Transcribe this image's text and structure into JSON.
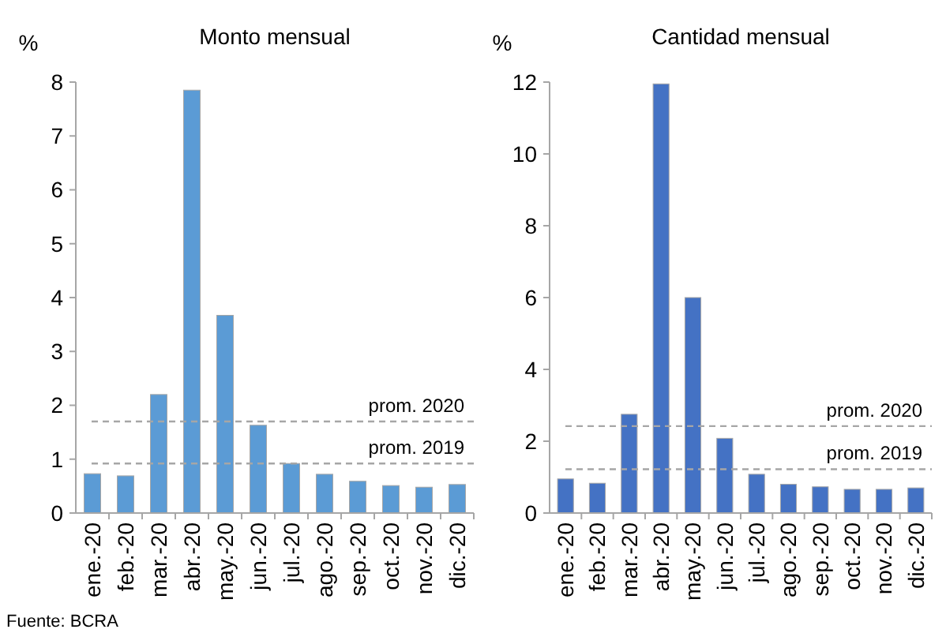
{
  "chart_data": [
    {
      "type": "bar",
      "title": "Monto mensual",
      "ylabel": "%",
      "categories": [
        "ene.-20",
        "feb.-20",
        "mar.-20",
        "abr.-20",
        "may.-20",
        "jun.-20",
        "jul.-20",
        "ago.-20",
        "sep.-20",
        "oct.-20",
        "nov.-20",
        "dic.-20"
      ],
      "series": [
        {
          "color": "#5b9bd5",
          "values": [
            0.73,
            0.69,
            2.2,
            7.85,
            3.67,
            1.63,
            0.92,
            0.72,
            0.59,
            0.51,
            0.48,
            0.53
          ]
        }
      ],
      "ylim": [
        0,
        8
      ],
      "yticks": [
        0,
        1,
        2,
        3,
        4,
        5,
        6,
        7,
        8
      ],
      "grid": false,
      "ref_lines": [
        {
          "axis": "y",
          "value": 1.7,
          "label": "prom. 2020",
          "color": "#a6a6a6",
          "line_style": "dashed"
        },
        {
          "axis": "y",
          "value": 0.92,
          "label": "prom. 2019",
          "color": "#a6a6a6",
          "line_style": "dashed"
        }
      ],
      "annotations": [
        "Fuente: BCRA"
      ]
    },
    {
      "type": "bar",
      "title": "Cantidad mensual",
      "ylabel": "%",
      "categories": [
        "ene.-20",
        "feb.-20",
        "mar.-20",
        "abr.-20",
        "may.-20",
        "jun.-20",
        "jul.-20",
        "ago.-20",
        "sep.-20",
        "oct.-20",
        "nov.-20",
        "dic.-20"
      ],
      "series": [
        {
          "color": "#4472c4",
          "values": [
            0.95,
            0.83,
            2.75,
            11.95,
            6.0,
            2.08,
            1.08,
            0.8,
            0.73,
            0.66,
            0.66,
            0.7
          ]
        }
      ],
      "ylim": [
        0,
        12
      ],
      "yticks": [
        0,
        2,
        4,
        6,
        8,
        10,
        12
      ],
      "grid": false,
      "ref_lines": [
        {
          "axis": "y",
          "value": 2.42,
          "label": "prom. 2020",
          "color": "#a6a6a6",
          "line_style": "dashed"
        },
        {
          "axis": "y",
          "value": 1.22,
          "label": "prom. 2019",
          "color": "#a6a6a6",
          "line_style": "dashed"
        }
      ]
    }
  ]
}
